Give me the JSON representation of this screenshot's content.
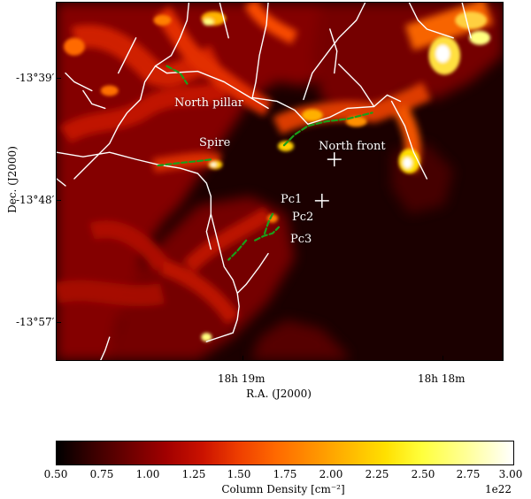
{
  "figure": {
    "background": "#ffffff",
    "map": {
      "colormap": "heat",
      "features": {
        "north_pillar": "North pillar",
        "spire": "Spire",
        "north_front": "North front",
        "pc1": "Pc1",
        "pc2": "Pc2",
        "pc3": "Pc3"
      }
    },
    "axes": {
      "x_label": "R.A. (J2000)",
      "y_label": "Dec. (J2000)",
      "x_ticks": [
        {
          "label": "18h 19m"
        },
        {
          "label": "18h 18m"
        }
      ],
      "y_ticks": [
        {
          "label": "-13°39′"
        },
        {
          "label": "-13°48′"
        },
        {
          "label": "-13°57′"
        }
      ]
    },
    "colorbar": {
      "label": "Column Density [cm⁻²]",
      "scale_exponent": "1e22",
      "ticks": [
        "0.50",
        "0.75",
        "1.00",
        "1.25",
        "1.50",
        "1.75",
        "2.00",
        "2.25",
        "2.50",
        "2.75",
        "3.00"
      ],
      "range": [
        0.5,
        3.0
      ],
      "colors": {
        "low": "#000000",
        "mid": "#ff6900",
        "high": "#ffffff"
      }
    }
  }
}
